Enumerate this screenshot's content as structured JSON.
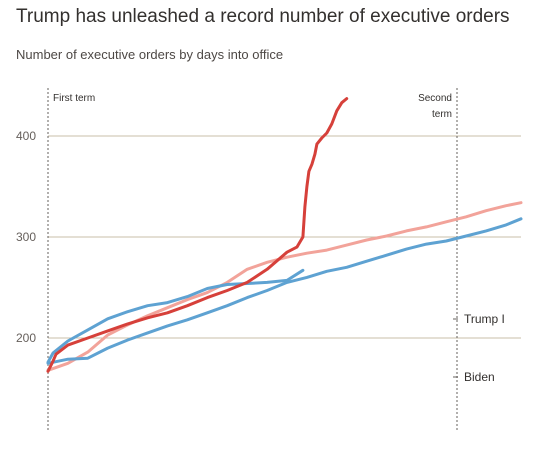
{
  "header": {
    "title": "Trump has unleashed a record number of executive orders",
    "subtitle": "Number of executive orders by days into office"
  },
  "chart_data": {
    "type": "line",
    "title": "Trump has unleashed a record number of executive orders",
    "subtitle": "Number of executive orders by days into office",
    "xlabel": "",
    "ylabel": "",
    "ylim": [
      100,
      440
    ],
    "y_ticks": [
      200,
      300,
      400
    ],
    "grid": true,
    "markers": [
      {
        "label_lines": [
          "First term"
        ],
        "align": "left"
      },
      {
        "label_lines": [
          "Second",
          "term"
        ],
        "align": "right"
      }
    ],
    "series": [
      {
        "name": "",
        "color": "#d6403a",
        "x": [
          0,
          5,
          8,
          20,
          40,
          60,
          80,
          100,
          120,
          140,
          160,
          180,
          200,
          220,
          240,
          250,
          256,
          258,
          260,
          262,
          265,
          268,
          270,
          275,
          280,
          285,
          290,
          295,
          300
        ],
        "y": [
          167,
          177,
          184,
          193,
          200,
          207,
          214,
          220,
          225,
          232,
          240,
          247,
          255,
          268,
          285,
          290,
          300,
          330,
          350,
          365,
          372,
          382,
          392,
          398,
          403,
          412,
          425,
          433,
          437
        ]
      },
      {
        "name": "Trump I",
        "color": "#f2a39a",
        "x": [
          0,
          20,
          40,
          60,
          80,
          100,
          120,
          140,
          160,
          180,
          200,
          220,
          240,
          260,
          280,
          300,
          320,
          340,
          360,
          380,
          400,
          420,
          440,
          460,
          475
        ],
        "y": [
          168,
          175,
          186,
          203,
          213,
          222,
          230,
          238,
          245,
          255,
          268,
          275,
          280,
          284,
          287,
          292,
          297,
          301,
          306,
          310,
          315,
          320,
          326,
          331,
          334
        ]
      },
      {
        "name": "Biden",
        "color": "#5ea2d2",
        "x": [
          0,
          5,
          20,
          40,
          60,
          80,
          100,
          120,
          140,
          160,
          180,
          200,
          220,
          240,
          256
        ],
        "y": [
          176,
          185,
          197,
          208,
          219,
          226,
          232,
          235,
          241,
          249,
          253,
          254,
          255,
          257,
          267
        ]
      },
      {
        "name": "",
        "color": "#5ea2d2",
        "x": [
          0,
          20,
          40,
          60,
          80,
          100,
          120,
          140,
          160,
          180,
          200,
          220,
          240,
          260,
          280,
          300,
          320,
          340,
          360,
          380,
          400,
          420,
          440,
          460,
          475
        ],
        "y": [
          175,
          179,
          180,
          190,
          198,
          205,
          212,
          218,
          225,
          232,
          240,
          247,
          255,
          260,
          266,
          270,
          276,
          282,
          288,
          293,
          296,
          301,
          306,
          312,
          318
        ]
      }
    ],
    "series_labels": [
      {
        "text": "Trump I",
        "series": 1
      },
      {
        "text": "Biden",
        "series": 3
      }
    ]
  }
}
